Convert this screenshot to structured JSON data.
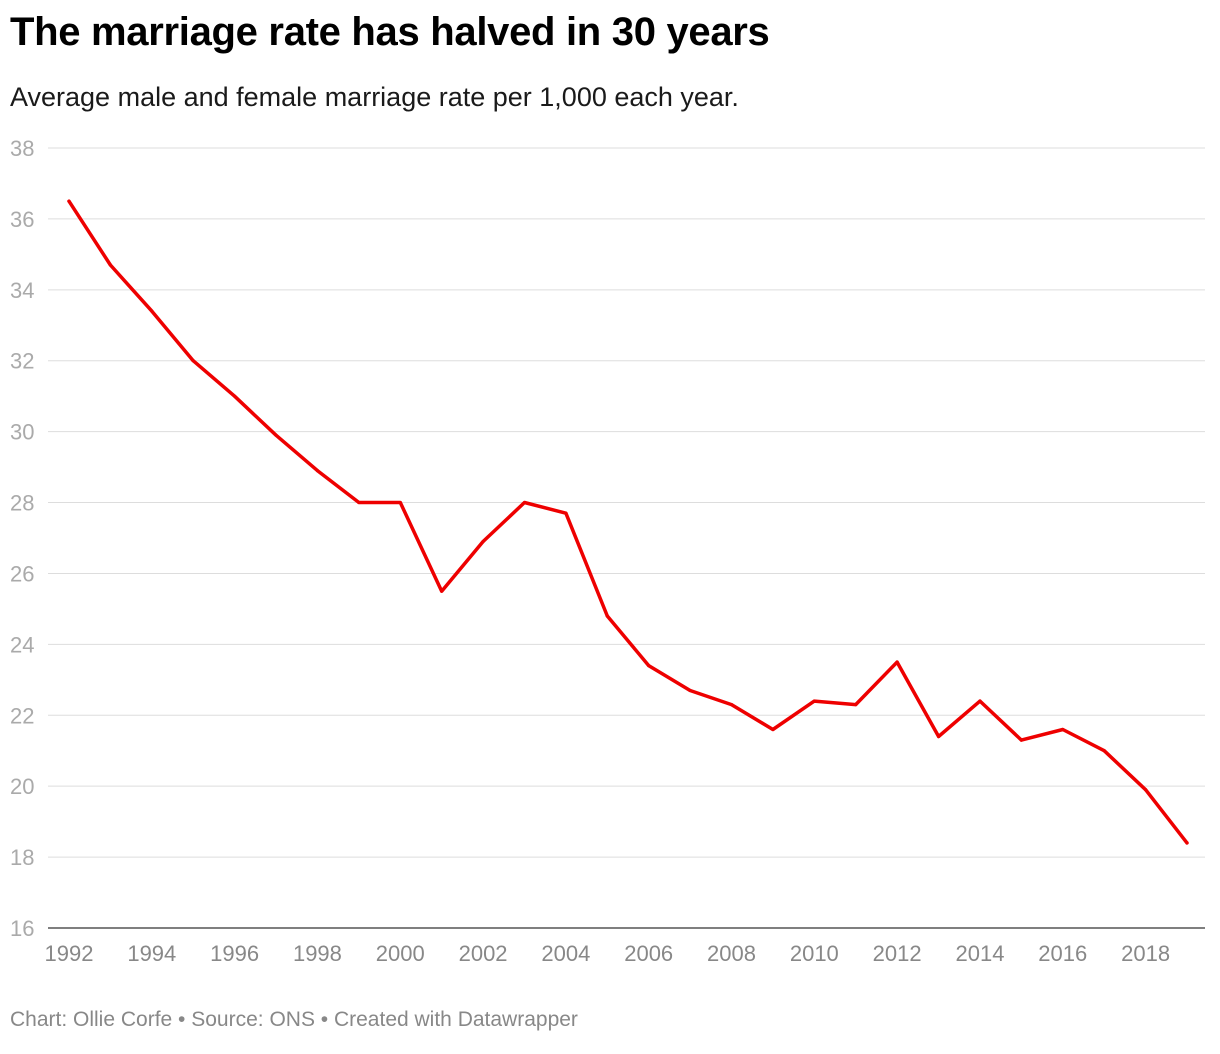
{
  "title": "The marriage rate has halved in 30 years",
  "subtitle": "Average male and female marriage rate per 1,000 each year.",
  "footer": "Chart: Ollie Corfe • Source: ONS • Created with Datawrapper",
  "colors": {
    "line": "#ee0000",
    "grid": "#dddddd"
  },
  "chart_data": {
    "type": "line",
    "title": "The marriage rate has halved in 30 years",
    "subtitle": "Average male and female marriage rate per 1,000 each year.",
    "xlabel": "",
    "ylabel": "",
    "ylim": [
      16,
      38
    ],
    "xlim": [
      1992,
      2019
    ],
    "yticks": [
      "38",
      "36",
      "34",
      "32",
      "30",
      "28",
      "26",
      "24",
      "22",
      "20",
      "18",
      "16"
    ],
    "xticks": [
      "1992",
      "1994",
      "1996",
      "1998",
      "2000",
      "2002",
      "2004",
      "2006",
      "2008",
      "2010",
      "2012",
      "2014",
      "2016",
      "2018"
    ],
    "grid": true,
    "series": [
      {
        "x": [
          1992,
          1993,
          1994,
          1995,
          1996,
          1997,
          1998,
          1999,
          2000,
          2001,
          2002,
          2003,
          2004,
          2005,
          2006,
          2007,
          2008,
          2009,
          2010,
          2011,
          2012,
          2013,
          2014,
          2015,
          2016,
          2017,
          2018,
          2019
        ],
        "values": [
          36.5,
          34.7,
          33.4,
          32.0,
          31.0,
          29.9,
          28.9,
          28.0,
          28.0,
          25.5,
          26.9,
          28.0,
          27.7,
          24.8,
          23.4,
          22.7,
          22.3,
          21.6,
          22.4,
          22.3,
          23.5,
          21.4,
          22.4,
          21.3,
          21.6,
          21.0,
          19.9,
          18.4
        ]
      }
    ]
  }
}
